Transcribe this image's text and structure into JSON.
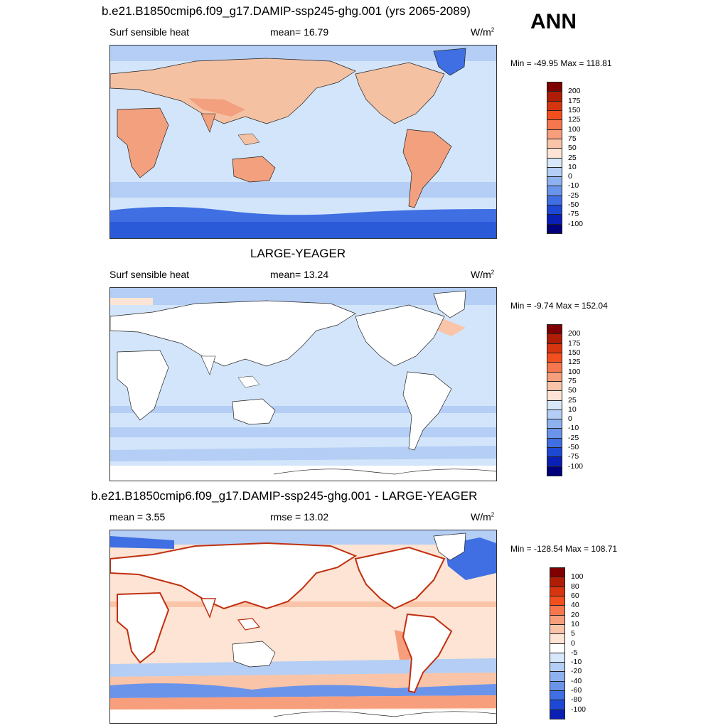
{
  "header": {
    "season": "ANN"
  },
  "panels": [
    {
      "title": "b.e21.B1850cmip6.f09_g17.DAMIP-ssp245-ghg.001 (yrs 2065-2089)",
      "left_label": "Surf sensible heat",
      "center_label": "mean=  16.79",
      "units": "W/m",
      "units_sup": "2",
      "minmax": "Min = -49.95 Max = 118.81",
      "colorbar": {
        "labels": [
          "200",
          "175",
          "150",
          "125",
          "100",
          "75",
          "50",
          "25",
          "10",
          "0",
          "-10",
          "-25",
          "-50",
          "-75",
          "-100"
        ],
        "colors": [
          "#7f0000",
          "#b01d06",
          "#d63510",
          "#f24e1e",
          "#f6774d",
          "#f79f7d",
          "#f9c4a8",
          "#fde4d4",
          "#d7e8fa",
          "#b4cef5",
          "#8eb2ef",
          "#6a94ea",
          "#3f6fe2",
          "#1e48d4",
          "#0a1fb4",
          "#00007a"
        ]
      },
      "colors": {
        "ocean": "#d3e5fa",
        "land": "#f5c1a3",
        "land_hot": "#f2a07e",
        "antarctic": "#3f6fe2",
        "southern_band": "#b4cef5",
        "greenland": "#3f6fe2"
      }
    },
    {
      "title": "LARGE-YEAGER",
      "left_label": "Surf sensible heat",
      "center_label": "mean=  13.24",
      "units": "W/m",
      "units_sup": "2",
      "minmax": "Min =  -9.74 Max = 152.04",
      "colorbar": {
        "labels": [
          "200",
          "175",
          "150",
          "125",
          "100",
          "75",
          "50",
          "25",
          "10",
          "0",
          "-10",
          "-25",
          "-50",
          "-75",
          "-100"
        ],
        "colors": [
          "#7f0000",
          "#b01d06",
          "#d63510",
          "#f24e1e",
          "#f6774d",
          "#f79f7d",
          "#f9c4a8",
          "#fde4d4",
          "#d7e8fa",
          "#b4cef5",
          "#8eb2ef",
          "#6a94ea",
          "#3f6fe2",
          "#1e48d4",
          "#0a1fb4",
          "#00007a"
        ]
      },
      "colors": {
        "ocean": "#d3e5fa",
        "land": "#ffffff",
        "arctic": "#b4cef5",
        "band": "#b4cef5",
        "warm_patch": "#fde4d4"
      }
    },
    {
      "title": "b.e21.B1850cmip6.f09_g17.DAMIP-ssp245-ghg.001 - LARGE-YEAGER",
      "left_label": "mean =   3.55",
      "center_label": "rmse =  13.02",
      "units": "W/m",
      "units_sup": "2",
      "minmax": "Min = -128.54 Max = 108.71",
      "colorbar": {
        "labels": [
          "100",
          "80",
          "60",
          "40",
          "20",
          "10",
          "5",
          "0",
          "-5",
          "-10",
          "-20",
          "-40",
          "-60",
          "-80",
          "-100"
        ],
        "colors": [
          "#7f0000",
          "#b01d06",
          "#d63510",
          "#f24e1e",
          "#f6774d",
          "#f79f7d",
          "#f9c4a8",
          "#fde4d4",
          "#ffffff",
          "#d7e8fa",
          "#b4cef5",
          "#8eb2ef",
          "#6a94ea",
          "#3f6fe2",
          "#1e48d4",
          "#0a1fb4"
        ]
      },
      "colors": {
        "ocean": "#fde4d4",
        "land": "#ffffff",
        "cool_band": "#b4cef5",
        "deep_cool": "#3f6fe2",
        "warm": "#f79f7d",
        "hot": "#d63510"
      }
    }
  ]
}
